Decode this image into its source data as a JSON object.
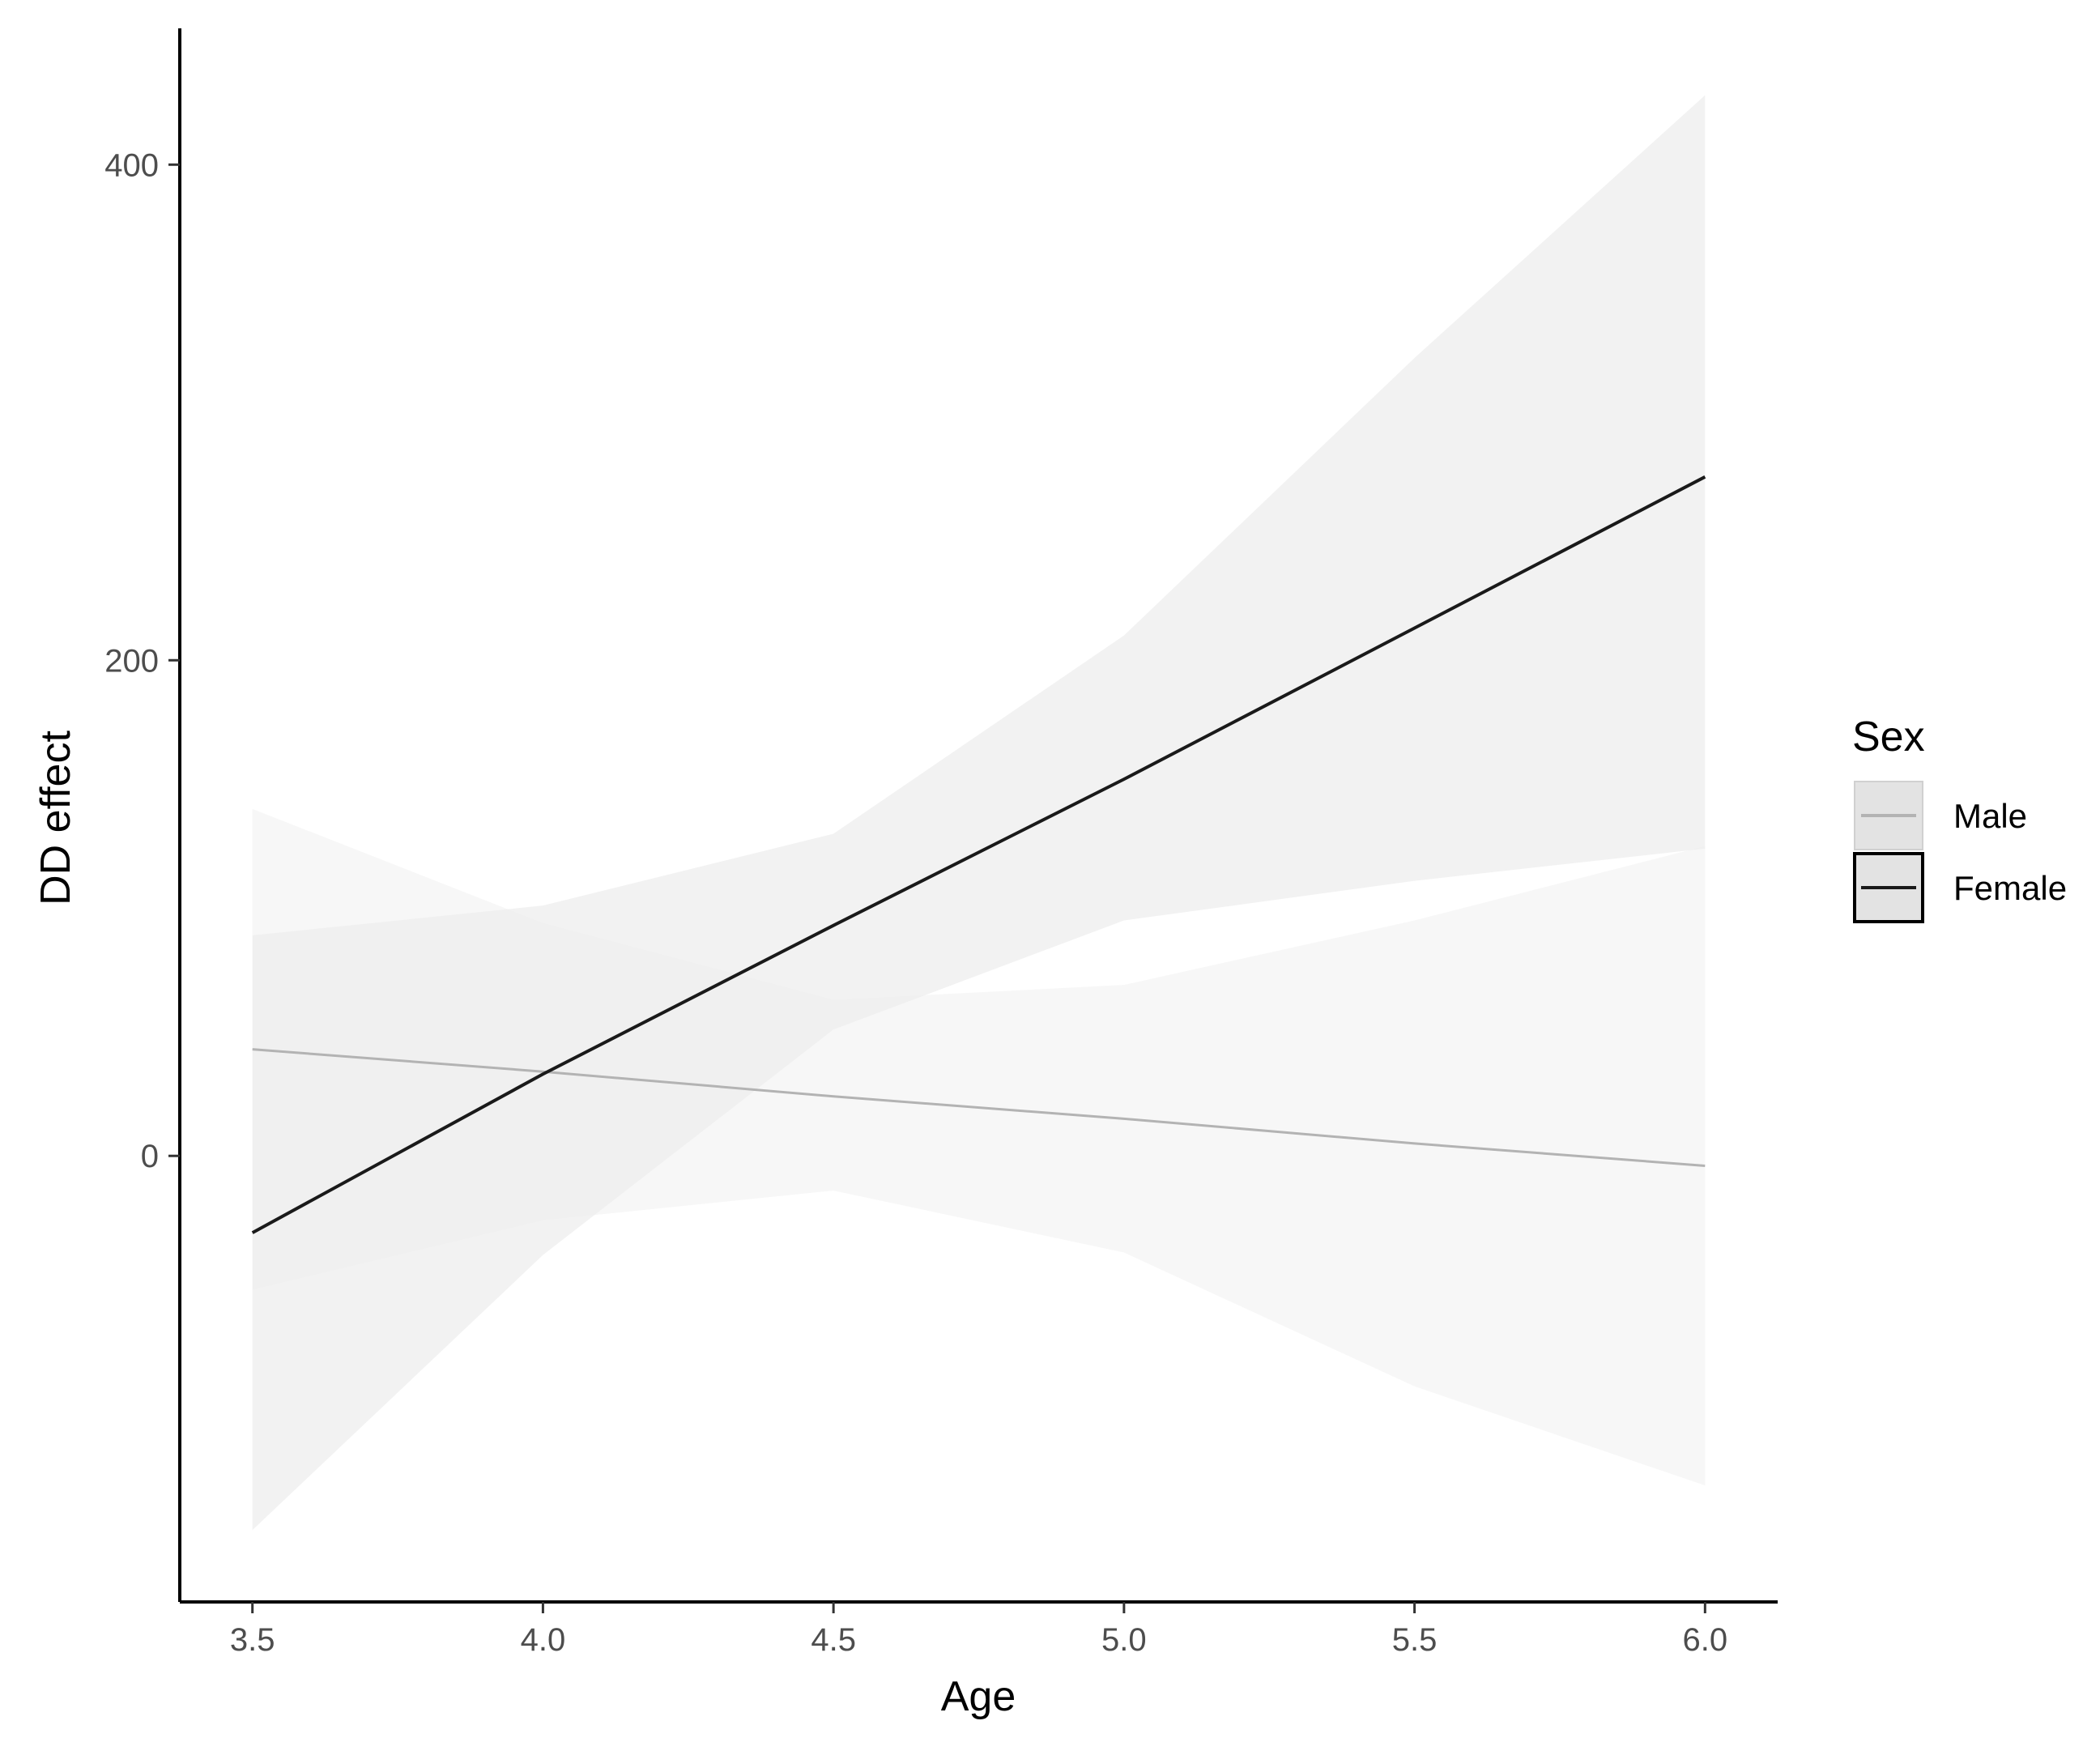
{
  "chart_data": {
    "type": "line",
    "xlabel": "Age",
    "ylabel": "DD effect",
    "xlim": [
      3.375,
      6.125
    ],
    "ylim": [
      -180,
      455
    ],
    "x_ticks": [
      3.5,
      4.0,
      4.5,
      5.0,
      5.5,
      6.0
    ],
    "x_tick_labels": [
      "3.5",
      "4.0",
      "4.5",
      "5.0",
      "5.5",
      "6.0"
    ],
    "y_ticks": [
      0,
      200,
      400
    ],
    "y_tick_labels": [
      "0",
      "200",
      "400"
    ],
    "grid": false,
    "legend": {
      "title": "Sex",
      "placement": "right",
      "entries": [
        "Male",
        "Female"
      ]
    },
    "series": [
      {
        "name": "Male",
        "color": "#b3b3b3",
        "band_color": "#f7f7f7",
        "x": [
          3.5,
          4.0,
          4.5,
          5.0,
          5.5,
          6.0
        ],
        "y": [
          43,
          34,
          24,
          15,
          5,
          -4
        ],
        "lower": [
          -54,
          -26,
          -14,
          -39,
          -93,
          -133
        ],
        "upper": [
          140,
          94,
          63,
          69,
          95,
          125
        ]
      },
      {
        "name": "Female",
        "color": "#1a1a1a",
        "band_color": "#eeeeee",
        "x": [
          3.5,
          4.0,
          4.5,
          5.0,
          5.5,
          6.0
        ],
        "y": [
          -31,
          33,
          93,
          152,
          213,
          274
        ],
        "lower": [
          -151,
          -40,
          51,
          95,
          111,
          124
        ],
        "upper": [
          89,
          101,
          130,
          210,
          322,
          428
        ]
      }
    ]
  }
}
